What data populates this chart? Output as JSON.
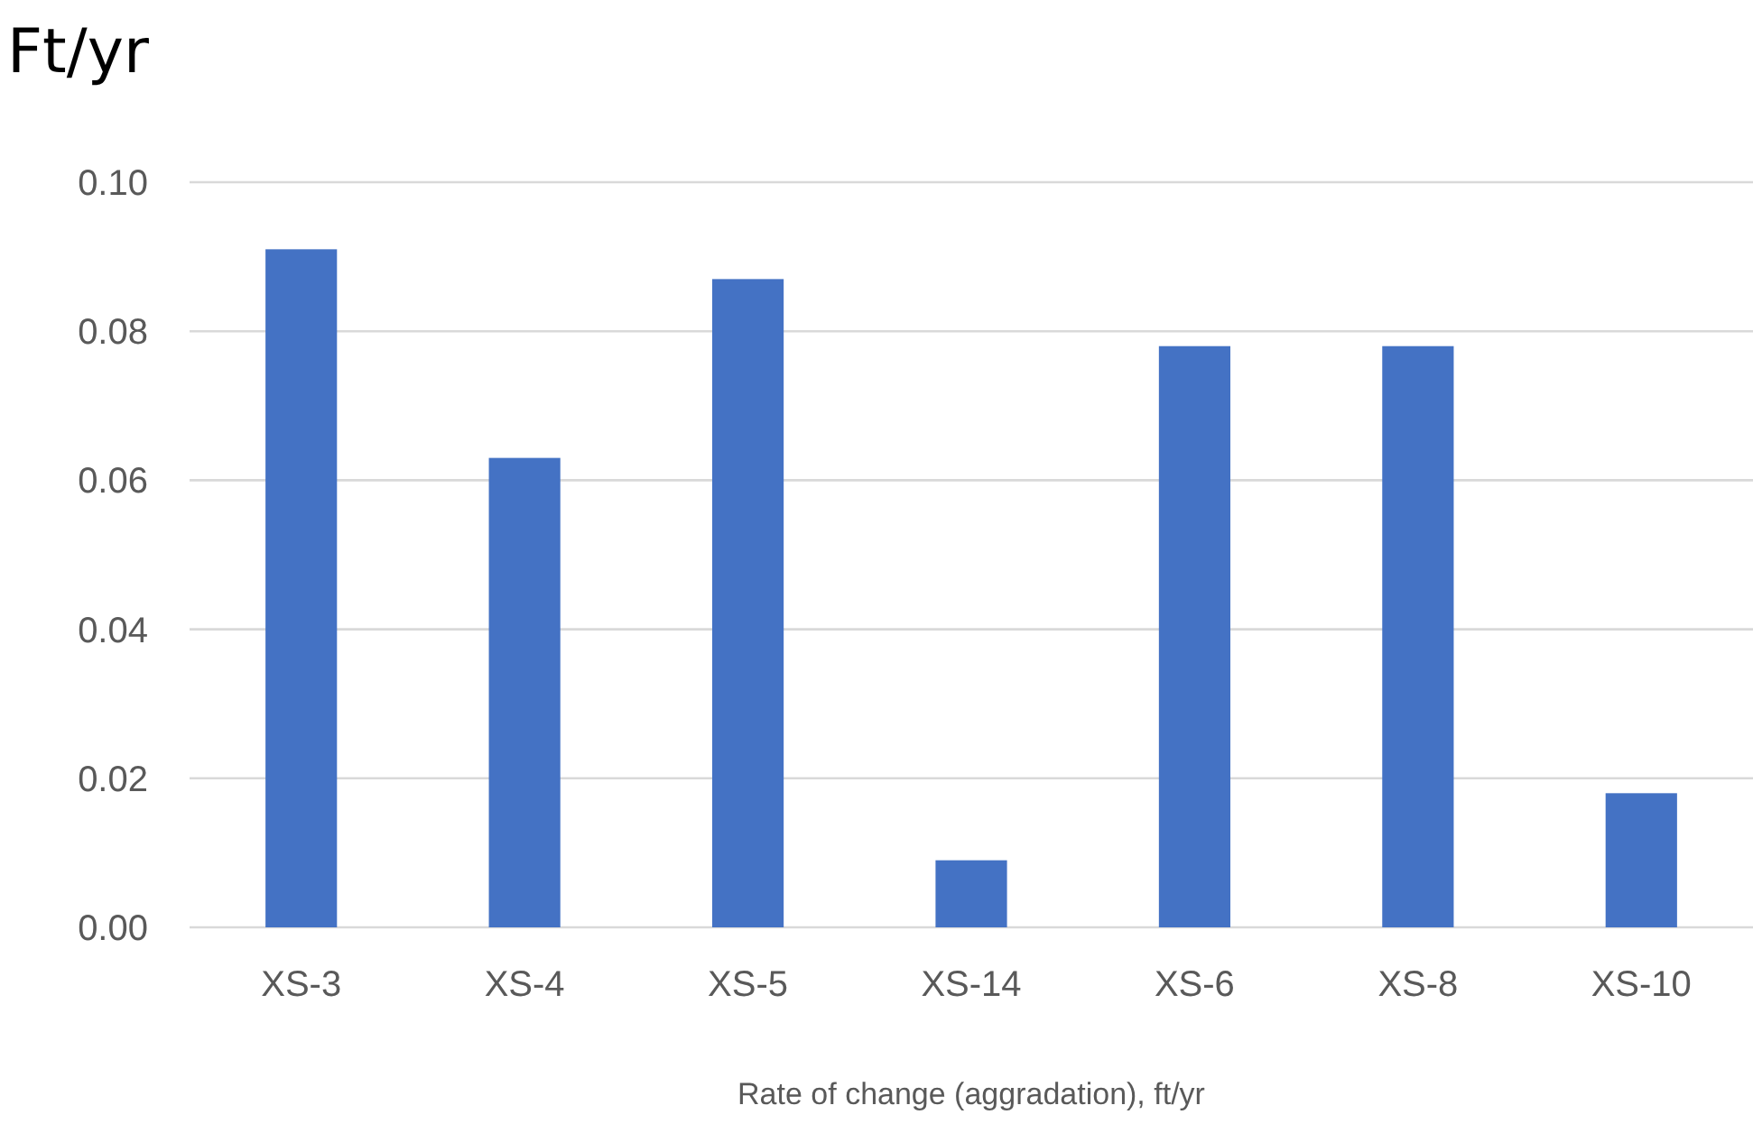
{
  "chart_data": {
    "type": "bar",
    "ylabel": "Ft/yr",
    "xlabel": "Rate of change (aggradation), ft/yr",
    "categories": [
      "XS-3",
      "XS-4",
      "XS-5",
      "XS-14",
      "XS-6",
      "XS-8",
      "XS-10"
    ],
    "values": [
      0.091,
      0.063,
      0.087,
      0.009,
      0.078,
      0.078,
      0.018
    ],
    "color": "#4472c4",
    "ylim": [
      0,
      0.1
    ],
    "yticks": [
      {
        "value": 0,
        "label": "0.00"
      },
      {
        "value": 0.02,
        "label": "0.02"
      },
      {
        "value": 0.04,
        "label": "0.04"
      },
      {
        "value": 0.06,
        "label": "0.06"
      },
      {
        "value": 0.08,
        "label": "0.08"
      },
      {
        "value": 0.1,
        "label": "0.10"
      }
    ],
    "grid": "y"
  }
}
